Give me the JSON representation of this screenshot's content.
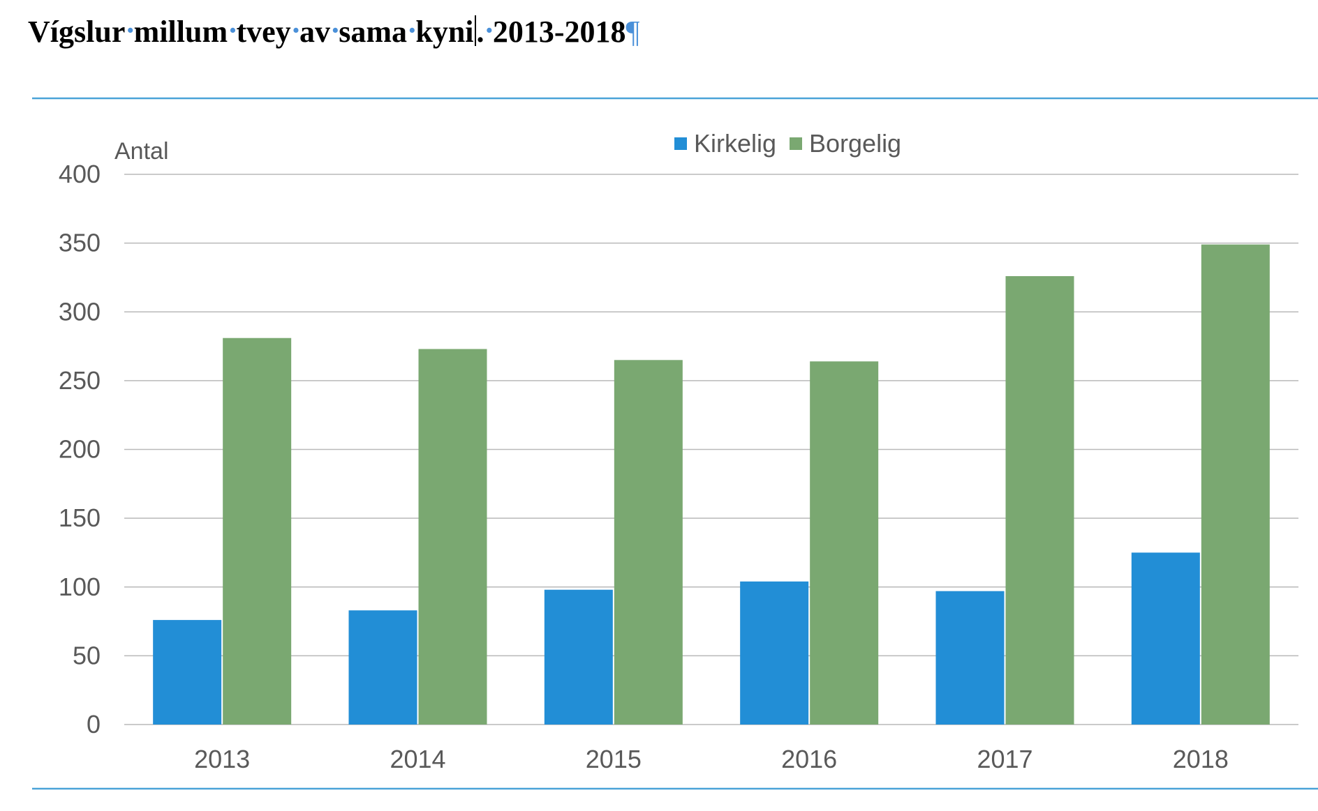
{
  "document": {
    "heading_words": [
      "Vígslur",
      "millum",
      "tvey",
      "av",
      "sama",
      "kyni",
      ".",
      "2013-2018"
    ],
    "space_mark": "·",
    "paragraph_mark": "¶"
  },
  "colors": {
    "kirkelig": "#228ed6",
    "borgelig": "#7aa871",
    "rule": "#4aa3d8",
    "grid": "#b9b9b9",
    "axis_text": "#595959"
  },
  "chart_data": {
    "type": "bar",
    "categories": [
      "2013",
      "2014",
      "2015",
      "2016",
      "2017",
      "2018"
    ],
    "series": [
      {
        "name": "Kirkelig",
        "values": [
          76,
          83,
          98,
          104,
          97,
          125
        ]
      },
      {
        "name": "Borgelig",
        "values": [
          281,
          273,
          265,
          264,
          326,
          349
        ]
      }
    ],
    "ylabel": "Antal",
    "ylim": [
      0,
      400
    ],
    "yticks": [
      "0",
      "50",
      "100",
      "150",
      "200",
      "250",
      "300",
      "350",
      "400"
    ],
    "ytick_values": [
      0,
      50,
      100,
      150,
      200,
      250,
      300,
      350,
      400
    ],
    "grid": true,
    "legend": "top-center"
  }
}
